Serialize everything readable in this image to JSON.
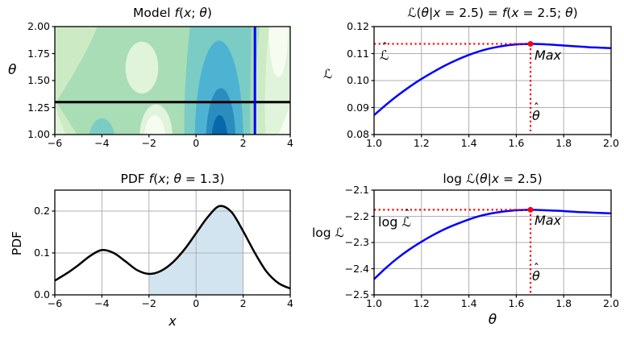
{
  "figure": {
    "background": "#ffffff"
  },
  "palette": {
    "curve_blue": "#0000ff",
    "marker_red": "#ff0000",
    "grid_gray": "#b0b0b0",
    "line_black": "#000000",
    "pdf_shade": "#d2e4f0",
    "contour_levels": [
      "#f7fcf0",
      "#e0f3db",
      "#ccebc5",
      "#a8ddb5",
      "#7bccc4",
      "#4eb3d3",
      "#2b8cbe",
      "#0868ac"
    ]
  },
  "chart_data": [
    {
      "id": "model",
      "type": "heatmap",
      "subtype": "filled-contour",
      "title": "Model f(x; θ)",
      "title_segments": [
        {
          "t": "Model ",
          "s": "r"
        },
        {
          "t": "f",
          "s": "i"
        },
        {
          "t": "(",
          "s": "r"
        },
        {
          "t": "x",
          "s": "i"
        },
        {
          "t": "; ",
          "s": "r"
        },
        {
          "t": "θ",
          "s": "i"
        },
        {
          "t": ")",
          "s": "r"
        }
      ],
      "xlabel": "",
      "ylabel": "θ",
      "xlim": [
        -6,
        4
      ],
      "ylim": [
        1.0,
        2.0
      ],
      "xticks": [
        -6,
        -4,
        -2,
        0,
        2,
        4
      ],
      "xtick_labels": [
        "−6",
        "−4",
        "−2",
        "0",
        "2",
        "4"
      ],
      "yticks": [
        2.0,
        1.75,
        1.5,
        1.25,
        1.0
      ],
      "ytick_labels": [
        "2.00",
        "1.75",
        "1.50",
        "1.25",
        "1.00"
      ],
      "grid": false,
      "colormap": "GnBu",
      "slice_theta": 1.3,
      "slice_x": 2.5,
      "slice_theta_color": "#000000",
      "slice_x_color": "#0000ff",
      "density_peaks": [
        {
          "x": 1.0,
          "note": "high-density blue core"
        },
        {
          "x": -4.0,
          "note": "secondary teal bump"
        }
      ]
    },
    {
      "id": "likelihood",
      "type": "line",
      "title": "ℒ(θ|x = 2.5) = f(x = 2.5; θ)",
      "title_segments": [
        {
          "t": "ℒ",
          "s": "c"
        },
        {
          "t": "(",
          "s": "r"
        },
        {
          "t": "θ",
          "s": "i"
        },
        {
          "t": "|",
          "s": "r"
        },
        {
          "t": "x",
          "s": "i"
        },
        {
          "t": " = 2.5) = ",
          "s": "r"
        },
        {
          "t": "f",
          "s": "i"
        },
        {
          "t": "(",
          "s": "r"
        },
        {
          "t": "x",
          "s": "i"
        },
        {
          "t": " = 2.5; ",
          "s": "r"
        },
        {
          "t": "θ",
          "s": "i"
        },
        {
          "t": ")",
          "s": "r"
        }
      ],
      "xlabel": "",
      "ylabel": "ℒ",
      "xlim": [
        1.0,
        2.0
      ],
      "ylim": [
        0.08,
        0.12
      ],
      "xticks": [
        1.0,
        1.2,
        1.4,
        1.6,
        1.8,
        2.0
      ],
      "xtick_labels": [
        "1.0",
        "1.2",
        "1.4",
        "1.6",
        "1.8",
        "2.0"
      ],
      "yticks": [
        0.12,
        0.11,
        0.1,
        0.09,
        0.08
      ],
      "ytick_labels": [
        "0.12",
        "0.11",
        "0.10",
        "0.09",
        "0.08"
      ],
      "grid": true,
      "line_color": "#0000ff",
      "x": [
        1.0,
        1.05,
        1.1,
        1.15,
        1.2,
        1.25,
        1.3,
        1.35,
        1.4,
        1.45,
        1.5,
        1.55,
        1.6,
        1.66,
        1.7,
        1.75,
        1.8,
        1.85,
        1.9,
        1.95,
        2.0
      ],
      "y": [
        0.0872,
        0.091,
        0.0945,
        0.0977,
        0.1006,
        0.1032,
        0.1056,
        0.1077,
        0.1095,
        0.111,
        0.1121,
        0.1129,
        0.1134,
        0.1136,
        0.1135,
        0.1133,
        0.113,
        0.1127,
        0.1124,
        0.1122,
        0.112
      ],
      "max_point": {
        "theta_hat": 1.66,
        "L_hat": 0.1136
      },
      "annotations": {
        "max": "Max",
        "peak_y_prefix": "",
        "peak_y_base": "ℒ",
        "peak_x_base": "θ",
        "hat": "ˆ"
      }
    },
    {
      "id": "pdf",
      "type": "area",
      "title": "PDF f(x; θ = 1.3)",
      "title_segments": [
        {
          "t": "PDF ",
          "s": "r"
        },
        {
          "t": "f",
          "s": "i"
        },
        {
          "t": "(",
          "s": "r"
        },
        {
          "t": "x",
          "s": "i"
        },
        {
          "t": "; ",
          "s": "r"
        },
        {
          "t": "θ",
          "s": "i"
        },
        {
          "t": " = 1.3)",
          "s": "r"
        }
      ],
      "xlabel": "x",
      "ylabel": "PDF",
      "xlim": [
        -6,
        4
      ],
      "ylim": [
        0,
        0.25
      ],
      "xticks": [
        -6,
        -4,
        -2,
        0,
        2,
        4
      ],
      "xtick_labels": [
        "−6",
        "−4",
        "−2",
        "0",
        "2",
        "4"
      ],
      "yticks": [
        0.2,
        0.1,
        0.0
      ],
      "ytick_labels": [
        "0.2",
        "0.1",
        "0.0"
      ],
      "grid": true,
      "line_color": "#000000",
      "fill_color": "#d2e4f0",
      "x": [
        -6,
        -5.5,
        -5,
        -4.5,
        -4,
        -3.5,
        -3,
        -2.5,
        -2,
        -1.5,
        -1,
        -0.5,
        0,
        0.5,
        1,
        1.5,
        2,
        2.5,
        3,
        3.5,
        4
      ],
      "y": [
        0.034,
        0.051,
        0.071,
        0.093,
        0.107,
        0.1,
        0.08,
        0.059,
        0.05,
        0.057,
        0.077,
        0.108,
        0.147,
        0.186,
        0.212,
        0.198,
        0.152,
        0.1,
        0.055,
        0.028,
        0.015
      ],
      "shade_range": [
        -2,
        2
      ]
    },
    {
      "id": "loglik",
      "type": "line",
      "title": "log ℒ(θ|x = 2.5)",
      "title_segments": [
        {
          "t": "log ",
          "s": "r"
        },
        {
          "t": "ℒ",
          "s": "c"
        },
        {
          "t": "(",
          "s": "r"
        },
        {
          "t": "θ",
          "s": "i"
        },
        {
          "t": "|",
          "s": "r"
        },
        {
          "t": "x",
          "s": "i"
        },
        {
          "t": " = 2.5)",
          "s": "r"
        }
      ],
      "xlabel": "θ",
      "ylabel": "log ℒ",
      "xlim": [
        1.0,
        2.0
      ],
      "ylim": [
        -2.5,
        -2.1
      ],
      "xticks": [
        1.0,
        1.2,
        1.4,
        1.6,
        1.8,
        2.0
      ],
      "xtick_labels": [
        "1.0",
        "1.2",
        "1.4",
        "1.6",
        "1.8",
        "2.0"
      ],
      "yticks": [
        -2.1,
        -2.2,
        -2.3,
        -2.4,
        -2.5
      ],
      "ytick_labels": [
        "−2.1",
        "−2.2",
        "−2.3",
        "−2.4",
        "−2.5"
      ],
      "grid": true,
      "line_color": "#0000ff",
      "x": [
        1.0,
        1.05,
        1.1,
        1.15,
        1.2,
        1.25,
        1.3,
        1.35,
        1.4,
        1.45,
        1.5,
        1.55,
        1.6,
        1.66,
        1.7,
        1.75,
        1.8,
        1.85,
        1.9,
        1.95,
        2.0
      ],
      "y": [
        -2.44,
        -2.397,
        -2.359,
        -2.326,
        -2.297,
        -2.271,
        -2.248,
        -2.229,
        -2.212,
        -2.198,
        -2.188,
        -2.181,
        -2.177,
        -2.175,
        -2.176,
        -2.178,
        -2.18,
        -2.183,
        -2.185,
        -2.187,
        -2.189
      ],
      "max_point": {
        "theta_hat": 1.66,
        "logL_hat": -2.175
      },
      "annotations": {
        "max": "Max",
        "peak_y_prefix": "log ",
        "peak_y_base": "ℒ",
        "peak_x_base": "θ",
        "hat": "ˆ"
      }
    }
  ]
}
